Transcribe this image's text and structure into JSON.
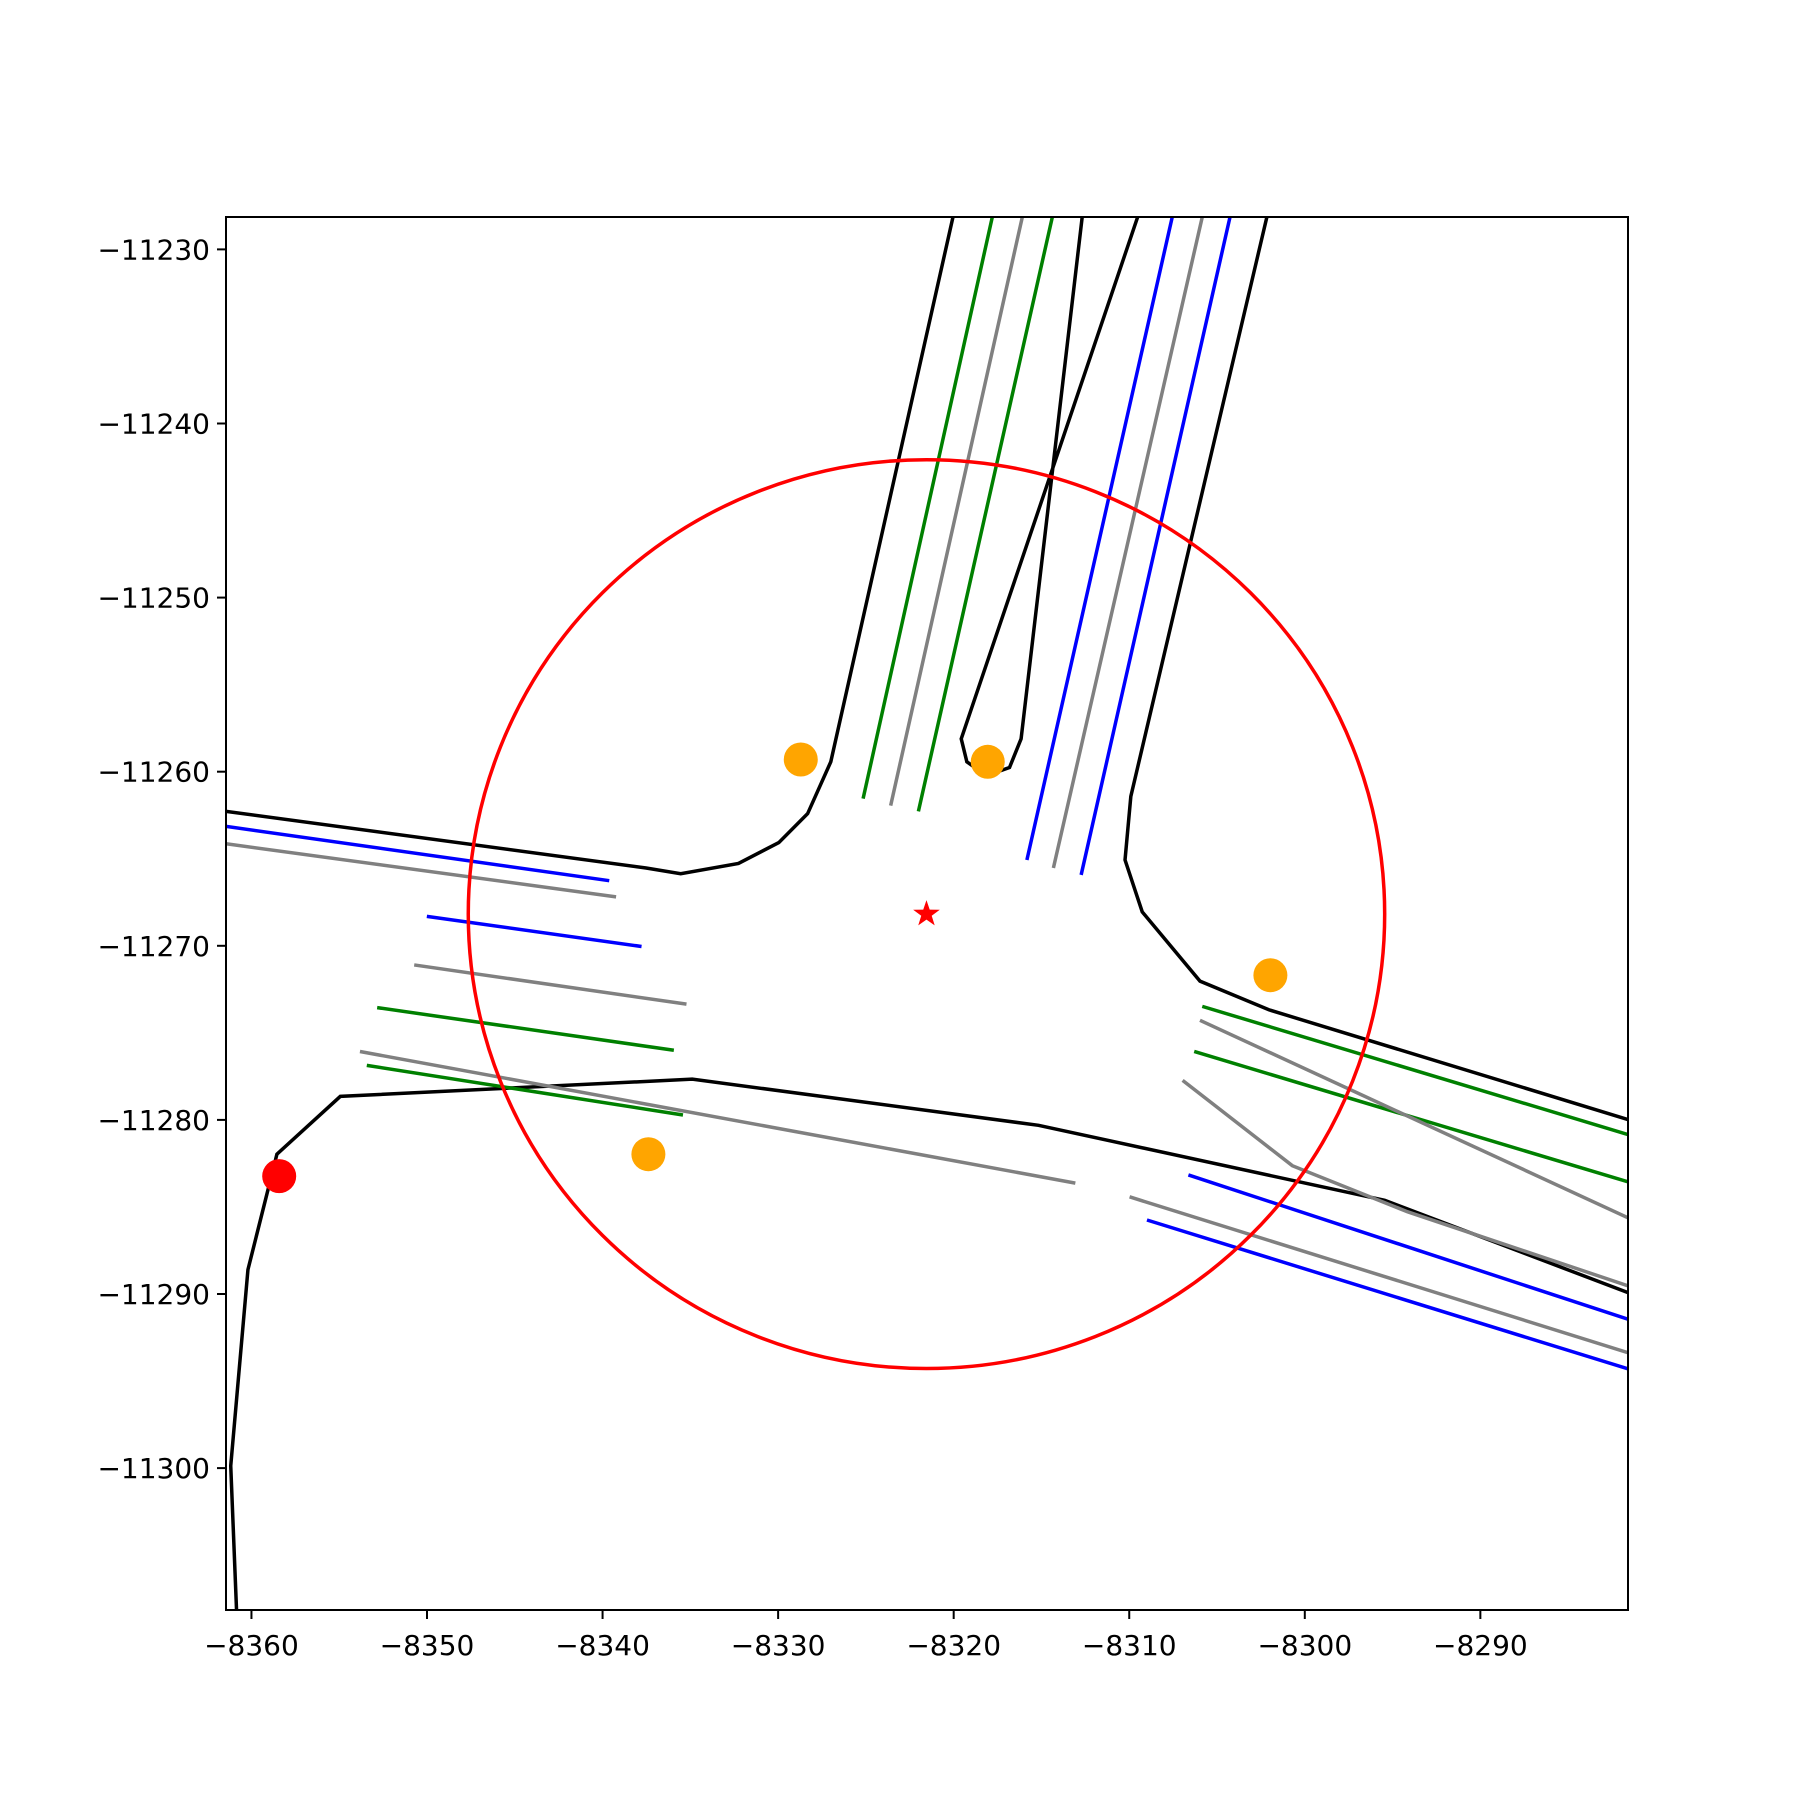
{
  "chart_data": {
    "type": "line",
    "xlim": [
      -8361.45,
      -8281.59
    ],
    "ylim": [
      -11308.15,
      -11228.14
    ],
    "xticks": [
      {
        "value": -8360,
        "label": "−8360"
      },
      {
        "value": -8350,
        "label": "−8350"
      },
      {
        "value": -8340,
        "label": "−8340"
      },
      {
        "value": -8330,
        "label": "−8330"
      },
      {
        "value": -8320,
        "label": "−8320"
      },
      {
        "value": -8310,
        "label": "−8310"
      },
      {
        "value": -8300,
        "label": "−8300"
      },
      {
        "value": -8290,
        "label": "−8290"
      }
    ],
    "yticks": [
      {
        "value": -11230,
        "label": "−11230"
      },
      {
        "value": -11240,
        "label": "−11240"
      },
      {
        "value": -11250,
        "label": "−11250"
      },
      {
        "value": -11260,
        "label": "−11260"
      },
      {
        "value": -11270,
        "label": "−11270"
      },
      {
        "value": -11280,
        "label": "−11280"
      },
      {
        "value": -11290,
        "label": "−11290"
      },
      {
        "value": -11300,
        "label": "−11300"
      }
    ],
    "series": [
      {
        "color": "#000000",
        "x": [
          -8361.45,
          -8337.52,
          -8335.55,
          -8332.26,
          -8329.96,
          -8328.32,
          -8327.0,
          -8320.04
        ],
        "values": [
          -11262.28,
          -11265.53,
          -11265.86,
          -11265.27,
          -11264.07,
          -11262.41,
          -11259.43,
          -11228.14
        ]
      },
      {
        "color": "#000000",
        "x": [
          -8312.68,
          -8316.16,
          -8316.82,
          -8318.13,
          -8319.25,
          -8319.57,
          -8309.52
        ],
        "values": [
          -11228.14,
          -11258.11,
          -11259.76,
          -11260.23,
          -11259.43,
          -11258.11,
          -11228.14
        ]
      },
      {
        "color": "#000000",
        "x": [
          -8302.16,
          -8309.91,
          -8310.24,
          -8309.26,
          -8305.97,
          -8302.03,
          -8281.59
        ],
        "values": [
          -11228.14,
          -11261.42,
          -11265.07,
          -11268.05,
          -11272.03,
          -11273.68,
          -11279.98
        ]
      },
      {
        "color": "#000000",
        "x": [
          -8360.85,
          -8361.18,
          -8360.2,
          -8358.55,
          -8354.94,
          -8334.89,
          -8315.17,
          -8295.45,
          -8281.59
        ],
        "values": [
          -11308.15,
          -11299.87,
          -11288.6,
          -11281.97,
          -11278.65,
          -11277.66,
          -11280.31,
          -11284.62,
          -11289.92
        ]
      },
      {
        "color": "#008000",
        "x": [
          -8325.16,
          -8317.8
        ],
        "values": [
          -11261.55,
          -11228.14
        ]
      },
      {
        "color": "#008000",
        "x": [
          -8322.01,
          -8314.38
        ],
        "values": [
          -11262.28,
          -11228.14
        ]
      },
      {
        "color": "#008000",
        "x": [
          -8352.84,
          -8335.94
        ],
        "values": [
          -11273.55,
          -11276.0
        ]
      },
      {
        "color": "#008000",
        "x": [
          -8353.43,
          -8335.42
        ],
        "values": [
          -11276.87,
          -11279.72
        ]
      },
      {
        "color": "#008000",
        "x": [
          -8305.84,
          -8281.59
        ],
        "values": [
          -11273.48,
          -11280.84
        ]
      },
      {
        "color": "#008000",
        "x": [
          -8306.3,
          -8281.59
        ],
        "values": [
          -11276.07,
          -11283.56
        ]
      },
      {
        "color": "#808080",
        "x": [
          -8323.59,
          -8316.09
        ],
        "values": [
          -11261.95,
          -11228.14
        ]
      },
      {
        "color": "#808080",
        "x": [
          -8314.32,
          -8305.84
        ],
        "values": [
          -11265.53,
          -11228.14
        ]
      },
      {
        "color": "#808080",
        "x": [
          -8361.45,
          -8339.23
        ],
        "values": [
          -11264.14,
          -11267.19
        ]
      },
      {
        "color": "#808080",
        "x": [
          -8350.73,
          -8335.22
        ],
        "values": [
          -11271.1,
          -11273.35
        ]
      },
      {
        "color": "#808080",
        "x": [
          -8353.82,
          -8313.07
        ],
        "values": [
          -11276.07,
          -11283.63
        ]
      },
      {
        "color": "#808080",
        "x": [
          -8305.97,
          -8281.59
        ],
        "values": [
          -11274.28,
          -11285.62
        ]
      },
      {
        "color": "#808080",
        "x": [
          -8306.96,
          -8300.71,
          -8294.14,
          -8281.59
        ],
        "values": [
          -11277.73,
          -11282.63,
          -11285.28,
          -11289.53
        ]
      },
      {
        "color": "#808080",
        "x": [
          -8309.98,
          -8281.59
        ],
        "values": [
          -11284.42,
          -11293.37
        ]
      },
      {
        "color": "#0000ff",
        "x": [
          -8315.83,
          -8307.55
        ],
        "values": [
          -11265.07,
          -11228.14
        ]
      },
      {
        "color": "#0000ff",
        "x": [
          -8312.74,
          -8304.26
        ],
        "values": [
          -11265.93,
          -11228.14
        ]
      },
      {
        "color": "#0000ff",
        "x": [
          -8361.45,
          -8339.62
        ],
        "values": [
          -11263.14,
          -11266.26
        ]
      },
      {
        "color": "#0000ff",
        "x": [
          -8350.01,
          -8337.78
        ],
        "values": [
          -11268.31,
          -11270.04
        ]
      },
      {
        "color": "#0000ff",
        "x": [
          -8306.63,
          -8281.59
        ],
        "values": [
          -11283.16,
          -11291.45
        ]
      },
      {
        "color": "#0000ff",
        "x": [
          -8308.99,
          -8281.59
        ],
        "values": [
          -11285.75,
          -11294.3
        ]
      }
    ],
    "circle": {
      "x": -8321.55,
      "y": -11268.18,
      "radius": 26.1,
      "color": "#ff0000"
    },
    "points": [
      {
        "x": -8328.71,
        "y": -11259.3,
        "color": "#ffa500",
        "marker": "circle"
      },
      {
        "x": -8318.06,
        "y": -11259.43,
        "color": "#ffa500",
        "marker": "circle"
      },
      {
        "x": -8301.96,
        "y": -11271.69,
        "color": "#ffa500",
        "marker": "circle"
      },
      {
        "x": -8337.39,
        "y": -11281.97,
        "color": "#ffa500",
        "marker": "circle"
      },
      {
        "x": -8358.42,
        "y": -11283.23,
        "color": "#ff0000",
        "marker": "circle"
      },
      {
        "x": -8321.55,
        "y": -11268.18,
        "color": "#ff0000",
        "marker": "star"
      }
    ]
  }
}
